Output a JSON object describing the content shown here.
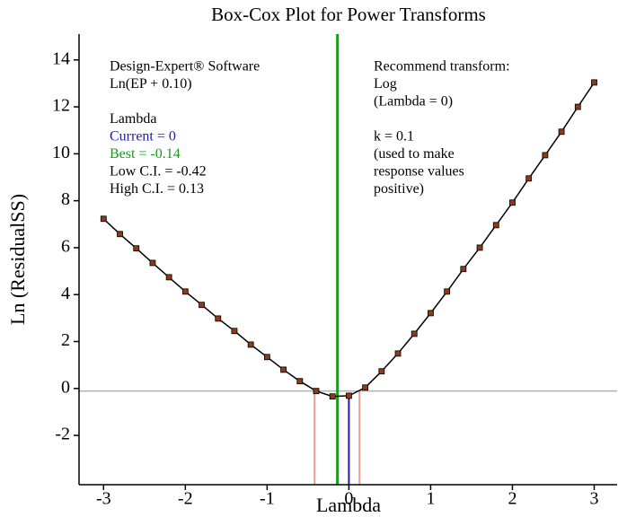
{
  "chart_data": {
    "type": "line",
    "title": "Box-Cox Plot for Power Transforms",
    "xlabel": "Lambda",
    "ylabel": "Ln (ResidualSS)",
    "x": [
      -3,
      -2.8,
      -2.6,
      -2.4,
      -2.2,
      -2,
      -1.8,
      -1.6,
      -1.4,
      -1.2,
      -1,
      -0.8,
      -0.6,
      -0.4,
      -0.2,
      0,
      0.2,
      0.4,
      0.6,
      0.8,
      1,
      1.2,
      1.4,
      1.6,
      1.8,
      2,
      2.2,
      2.4,
      2.6,
      2.8,
      3
    ],
    "series": [
      {
        "color": "#000000",
        "marker_color": "#8b3a1a",
        "values": [
          7.23,
          6.58,
          5.97,
          5.35,
          4.74,
          4.13,
          3.56,
          2.98,
          2.45,
          1.87,
          1.34,
          0.8,
          0.31,
          -0.11,
          -0.34,
          -0.31,
          0.04,
          0.73,
          1.49,
          2.33,
          3.21,
          4.13,
          5.09,
          6.0,
          6.96,
          7.92,
          8.95,
          9.94,
          10.94,
          12.0,
          13.04
        ]
      }
    ],
    "xlim": [
      -3.3,
      3.28
    ],
    "ylim": [
      -4.1,
      15.1
    ],
    "xticks": [
      -3,
      -2,
      -1,
      0,
      1,
      2,
      3
    ],
    "yticks": [
      -2,
      0,
      2,
      4,
      6,
      8,
      10,
      12,
      14
    ],
    "hline": {
      "value": -0.11,
      "color": "#b0b0b0"
    },
    "vlines": [
      {
        "value": -0.14,
        "color": "#1a9a1a",
        "extent": "full"
      },
      {
        "value": 0,
        "color": "#1f1fa0",
        "extent": "curve"
      },
      {
        "value": -0.42,
        "color": "#e8a090",
        "extent": "hline"
      },
      {
        "value": 0.13,
        "color": "#e8a090",
        "extent": "hline"
      }
    ],
    "annotations_left": [
      {
        "text": "Design-Expert® Software",
        "color": "#000000"
      },
      {
        "text": "Ln(EP + 0.10)",
        "color": "#000000"
      },
      {
        "text": "",
        "color": "#000000"
      },
      {
        "text": "Lambda",
        "color": "#000000"
      },
      {
        "text": "Current = 0",
        "color": "#1f1fa0"
      },
      {
        "text": "Best = -0.14",
        "color": "#1a9a1a"
      },
      {
        "text": "Low C.I. = -0.42",
        "color": "#000000"
      },
      {
        "text": "High C.I. = 0.13",
        "color": "#000000"
      }
    ],
    "annotations_right": [
      {
        "text": "Recommend transform:",
        "color": "#000000"
      },
      {
        "text": "Log",
        "color": "#000000"
      },
      {
        "text": "(Lambda = 0)",
        "color": "#000000"
      },
      {
        "text": "",
        "color": "#000000"
      },
      {
        "text": "k = 0.1",
        "color": "#000000"
      },
      {
        "text": "(used to make",
        "color": "#000000"
      },
      {
        "text": "response values",
        "color": "#000000"
      },
      {
        "text": "positive)",
        "color": "#000000"
      }
    ]
  }
}
